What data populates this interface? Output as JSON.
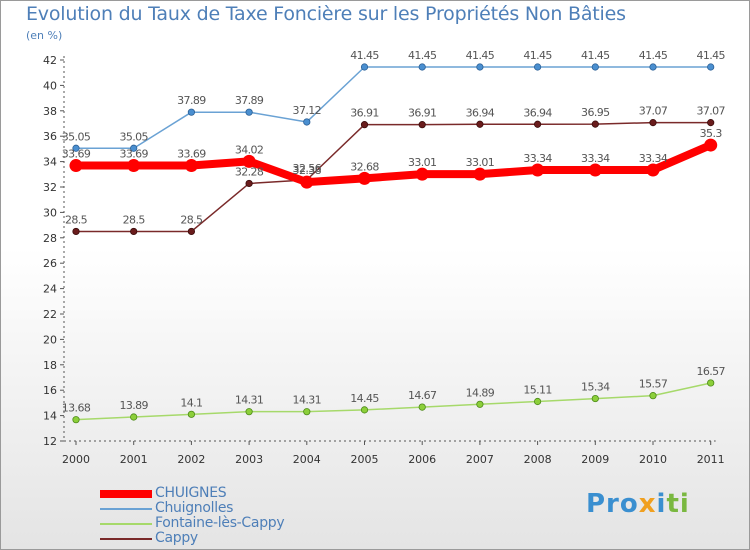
{
  "chart_data": {
    "type": "line",
    "title": "Evolution du Taux de Taxe Foncière sur les Propriétés Non Bâties",
    "ylabel": "(en %)",
    "xlabel": "",
    "x": [
      "2000",
      "2001",
      "2002",
      "2003",
      "2004",
      "2005",
      "2006",
      "2007",
      "2008",
      "2009",
      "2010",
      "2011"
    ],
    "ylim": [
      12,
      42
    ],
    "yticks": [
      12,
      14,
      16,
      18,
      20,
      22,
      24,
      26,
      28,
      30,
      32,
      34,
      36,
      38,
      40,
      42
    ],
    "grid": false,
    "legend_position": "bottom-left",
    "series": [
      {
        "name": "CHUIGNES",
        "color": "#ff0000",
        "values": [
          33.69,
          33.69,
          33.69,
          34.02,
          32.38,
          32.68,
          33.01,
          33.01,
          33.34,
          33.34,
          33.34,
          35.3
        ],
        "labels": [
          "33.69",
          "33.69",
          "33.69",
          "34.02",
          "32.38",
          "32.68",
          "33.01",
          "33.01",
          "33.34",
          "33.34",
          "33.34",
          "35.3"
        ]
      },
      {
        "name": "Chuignolles",
        "color": "#6aa2d4",
        "values": [
          35.05,
          35.05,
          37.89,
          37.89,
          37.12,
          41.45,
          41.45,
          41.45,
          41.45,
          41.45,
          41.45,
          41.45
        ],
        "labels": [
          "35.05",
          "35.05",
          "37.89",
          "37.89",
          "37.12",
          "41.45",
          "41.45",
          "41.45",
          "41.45",
          "41.45",
          "41.45",
          "41.45"
        ]
      },
      {
        "name": "Fontaine-lès-Cappy",
        "color": "#a6d96a",
        "values": [
          13.68,
          13.89,
          14.1,
          14.31,
          14.31,
          14.45,
          14.67,
          14.89,
          15.11,
          15.34,
          15.57,
          16.57
        ],
        "labels": [
          "13.68",
          "13.89",
          "14.1",
          "14.31",
          "14.31",
          "14.45",
          "14.67",
          "14.89",
          "15.11",
          "15.34",
          "15.57",
          "16.57"
        ]
      },
      {
        "name": "Cappy",
        "color": "#7a2a2a",
        "values": [
          28.5,
          28.5,
          28.5,
          32.28,
          32.56,
          36.91,
          36.91,
          36.94,
          36.94,
          36.95,
          37.07,
          37.07
        ],
        "labels": [
          "28.5",
          "28.5",
          "28.5",
          "32.28",
          "32.56",
          "36.91",
          "36.91",
          "36.94",
          "36.94",
          "36.95",
          "37.07",
          "37.07"
        ]
      }
    ]
  },
  "logo": {
    "text": "Proxiti"
  }
}
